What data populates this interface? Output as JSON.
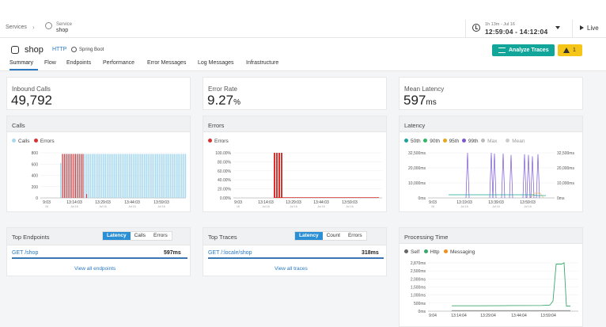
{
  "breadcrumb": {
    "root": "Services",
    "service_label": "Service",
    "service_name": "shop"
  },
  "time": {
    "range": "1h 13m - Jul 16",
    "value": "12:59:04 - 14:12:04",
    "live": "Live"
  },
  "service": {
    "name": "shop",
    "protocol": "HTTP",
    "framework": "Spring Boot"
  },
  "actions": {
    "analyze": "Analyze Traces",
    "warnings": "1"
  },
  "tabs": [
    "Summary",
    "Flow",
    "Endpoints",
    "Performance",
    "Error Messages",
    "Log Messages",
    "Infrastructure"
  ],
  "kpis": [
    {
      "label": "Inbound Calls",
      "value": "49,792",
      "unit": ""
    },
    {
      "label": "Error Rate",
      "value": "9.27",
      "unit": "%"
    },
    {
      "label": "Mean Latency",
      "value": "597",
      "unit": "ms"
    }
  ],
  "colors": {
    "calls": "#a9d9ef",
    "errors": "#d9332f",
    "p50": "#1aa59a",
    "p90": "#2fb766",
    "p95": "#e8a51a",
    "p99": "#7b57d1",
    "max": "#bbbbbb",
    "mean": "#cccccc",
    "self": "#666666",
    "http": "#3aa76d",
    "messaging": "#f0911c",
    "accent": "#2b8fd6"
  },
  "chart_data": [
    {
      "type": "bar",
      "title": "Calls",
      "legend": [
        "Calls",
        "Errors"
      ],
      "y_ticks": [
        "0",
        "200",
        "400",
        "600",
        "800"
      ],
      "ylim": [
        0,
        800
      ],
      "x_ticks": [
        {
          "t": "9:03",
          "d": "16"
        },
        {
          "t": "13:14:03",
          "d": "Jul 16"
        },
        {
          "t": "13:29:03",
          "d": "Jul 16"
        },
        {
          "t": "13:44:03",
          "d": "Jul 16"
        },
        {
          "t": "13:59:03",
          "d": "Jul 16"
        }
      ],
      "calls": {
        "n": 68,
        "start": 0,
        "level": 780,
        "first": 620,
        "gap_start": 21,
        "gap_end": 21,
        "gap_level": 620
      },
      "errors": {
        "start": 0,
        "end": 12,
        "level": 780,
        "tail": [
          14,
          70
        ]
      }
    },
    {
      "type": "bar",
      "title": "Errors",
      "legend": [
        "Errors"
      ],
      "y_ticks": [
        "0.00%",
        "20.00%",
        "40.00%",
        "60.00%",
        "80.00%",
        "100.00%"
      ],
      "ylim": [
        0,
        100
      ],
      "x_ticks": [
        {
          "t": "9:03",
          "d": "16"
        },
        {
          "t": "13:14:03",
          "d": "Jul 16"
        },
        {
          "t": "13:29:03",
          "d": "Jul 16"
        },
        {
          "t": "13:44:03",
          "d": "Jul 16"
        },
        {
          "t": "13:59:03",
          "d": "Jul 16"
        }
      ],
      "values": [
        100,
        100,
        100,
        100
      ]
    },
    {
      "type": "line",
      "title": "Latency",
      "legend": [
        "50th",
        "90th",
        "95th",
        "99th",
        "Max",
        "Mean"
      ],
      "y_ticks": [
        "0ms",
        "10,000ms",
        "20,000ms",
        "32,500ms"
      ],
      "ylim": [
        0,
        32500
      ],
      "x_ticks": [
        {
          "t": "9:03",
          "d": "16"
        },
        {
          "t": "13:19:03",
          "d": "Jul 16"
        },
        {
          "t": "13:39:03",
          "d": "Jul 16"
        },
        {
          "t": "13:59:03",
          "d": "Jul 16"
        }
      ],
      "p99_spikes": [
        32500,
        32500,
        32000,
        32000,
        31000,
        31500,
        31000,
        30000,
        31500
      ]
    },
    {
      "type": "line",
      "title": "Processing Time",
      "legend": [
        "Self",
        "Http",
        "Messaging"
      ],
      "y_ticks": [
        "0ms",
        "500ms",
        "1,000ms",
        "1,500ms",
        "2,000ms",
        "2,500ms",
        "2,870ms"
      ],
      "ylim": [
        0,
        2870
      ],
      "x_ticks": [
        {
          "t": "9:04",
          "d": ""
        },
        {
          "t": "13:14:04",
          "d": ""
        },
        {
          "t": "13:29:04",
          "d": ""
        },
        {
          "t": "13:44:04",
          "d": ""
        },
        {
          "t": "13:59:04",
          "d": ""
        }
      ],
      "http": [
        2870,
        2800,
        500
      ]
    }
  ],
  "top_endpoints": {
    "title": "Top Endpoints",
    "segments": [
      "Latency",
      "Calls",
      "Errors"
    ],
    "row": {
      "name": "GET /shop",
      "value": "597ms"
    },
    "view_all": "View all endpoints"
  },
  "top_traces": {
    "title": "Top Traces",
    "segments": [
      "Latency",
      "Count",
      "Errors"
    ],
    "row": {
      "name": "GET /:locale/shop",
      "value": "318ms"
    },
    "view_all": "View all traces"
  }
}
